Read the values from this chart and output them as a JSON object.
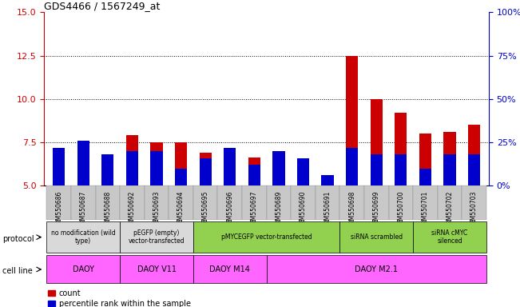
{
  "title": "GDS4466 / 1567249_at",
  "samples": [
    "GSM550686",
    "GSM550687",
    "GSM550688",
    "GSM550692",
    "GSM550693",
    "GSM550694",
    "GSM550695",
    "GSM550696",
    "GSM550697",
    "GSM550689",
    "GSM550690",
    "GSM550691",
    "GSM550698",
    "GSM550699",
    "GSM550700",
    "GSM550701",
    "GSM550702",
    "GSM550703"
  ],
  "count_values": [
    6.6,
    7.2,
    6.6,
    7.9,
    7.5,
    7.5,
    6.9,
    7.0,
    6.65,
    6.9,
    6.3,
    5.4,
    12.5,
    10.0,
    9.2,
    8.0,
    8.1,
    8.5
  ],
  "percentile_values": [
    22,
    26,
    18,
    20,
    20,
    10,
    16,
    22,
    12,
    20,
    16,
    6,
    22,
    18,
    18,
    10,
    18,
    18
  ],
  "ylim_left": [
    5,
    15
  ],
  "ylim_right": [
    0,
    100
  ],
  "yticks_left": [
    5.0,
    7.5,
    10.0,
    12.5,
    15.0
  ],
  "yticks_right": [
    0,
    25,
    50,
    75,
    100
  ],
  "bar_color_red": "#cc0000",
  "bar_color_blue": "#0000cc",
  "protocol_groups": [
    {
      "label": "no modification (wild\ntype)",
      "start": 0,
      "end": 3,
      "color": "#d9d9d9"
    },
    {
      "label": "pEGFP (empty)\nvector-transfected",
      "start": 3,
      "end": 6,
      "color": "#d9d9d9"
    },
    {
      "label": "pMYCEGFP vector-transfected",
      "start": 6,
      "end": 12,
      "color": "#92d050"
    },
    {
      "label": "siRNA scrambled",
      "start": 12,
      "end": 15,
      "color": "#92d050"
    },
    {
      "label": "siRNA cMYC\nsilenced",
      "start": 15,
      "end": 18,
      "color": "#92d050"
    }
  ],
  "cellline_groups": [
    {
      "label": "DAOY",
      "start": 0,
      "end": 3,
      "color": "#ff66ff"
    },
    {
      "label": "DAOY V11",
      "start": 3,
      "end": 6,
      "color": "#ff66ff"
    },
    {
      "label": "DAOY M14",
      "start": 6,
      "end": 9,
      "color": "#ff66ff"
    },
    {
      "label": "DAOY M2.1",
      "start": 9,
      "end": 18,
      "color": "#ff66ff"
    }
  ],
  "bar_width": 0.5,
  "background_color": "#ffffff",
  "tick_color_left": "#cc0000",
  "tick_color_right": "#0000cc",
  "dotted_line_y": [
    7.5,
    10.0,
    12.5
  ],
  "xtick_bg_color": "#c8c8c8"
}
